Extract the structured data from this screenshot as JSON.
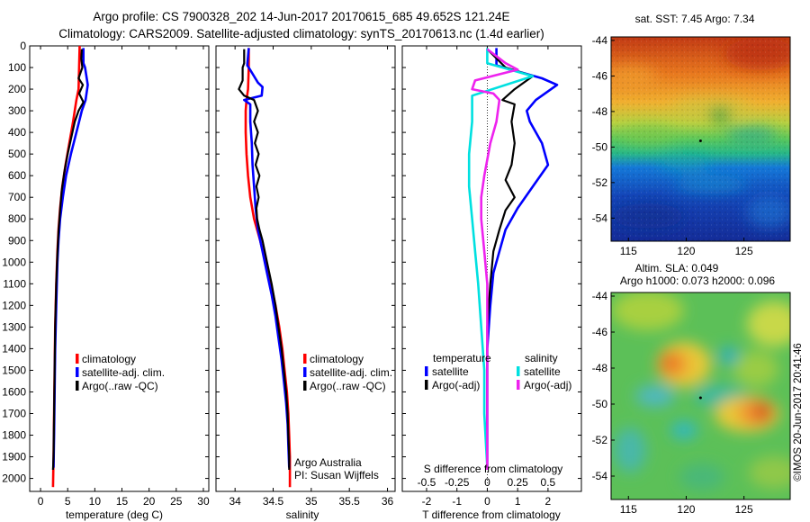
{
  "header": {
    "line1": "Argo profile: CS 7900328_202 14-Jun-2017 20170615_685 49.652S 121.24E",
    "line2": "Climatology: CARS2009. Satellite-adjusted climatology: synTS_20170613.nc (1.4d earlier)"
  },
  "colors": {
    "climatology": "#ff0000",
    "satellite": "#0000ff",
    "argo": "#000000",
    "salinity_satellite": "#00e0e0",
    "salinity_argo": "#ee22ee"
  },
  "depth_ticks": [
    0,
    100,
    200,
    300,
    400,
    500,
    600,
    700,
    800,
    900,
    1000,
    1100,
    1200,
    1300,
    1400,
    1500,
    1600,
    1700,
    1800,
    1900,
    2000
  ],
  "chart_data": [
    {
      "type": "line",
      "name": "temperature-panel",
      "xlabel": "temperature (deg C)",
      "ylabel": "",
      "xlim": [
        -2,
        31
      ],
      "ylim": [
        2060,
        0
      ],
      "x_ticks": [
        0,
        5,
        10,
        15,
        20,
        25,
        30
      ],
      "x_tick_labels": [
        "0",
        "5",
        "10",
        "15",
        "20",
        "25",
        "30"
      ],
      "legend": {
        "placement": "lower-middle",
        "entries": [
          "climatology",
          "satellite-adj. clim.",
          "Argo(..raw -QC)"
        ]
      },
      "series": [
        {
          "name": "climatology",
          "color": "#ff0000",
          "points": [
            [
              7.2,
              0
            ],
            [
              7.1,
              100
            ],
            [
              7.0,
              200
            ],
            [
              6.6,
              250
            ],
            [
              6.0,
              350
            ],
            [
              5.3,
              450
            ],
            [
              4.6,
              550
            ],
            [
              4.0,
              650
            ],
            [
              3.6,
              750
            ],
            [
              3.3,
              850
            ],
            [
              3.1,
              950
            ],
            [
              2.9,
              1100
            ],
            [
              2.7,
              1300
            ],
            [
              2.6,
              1500
            ],
            [
              2.5,
              1700
            ],
            [
              2.4,
              1900
            ],
            [
              2.3,
              2040
            ]
          ]
        },
        {
          "name": "satellite-adj. clim.",
          "color": "#0000ff",
          "points": [
            [
              7.9,
              10
            ],
            [
              7.9,
              80
            ],
            [
              8.2,
              100
            ],
            [
              8.7,
              180
            ],
            [
              8.3,
              250
            ],
            [
              7.6,
              300
            ],
            [
              6.6,
              400
            ],
            [
              5.6,
              500
            ],
            [
              4.7,
              600
            ],
            [
              4.1,
              700
            ],
            [
              3.6,
              800
            ],
            [
              3.3,
              900
            ],
            [
              3.1,
              1000
            ],
            [
              2.9,
              1200
            ],
            [
              2.7,
              1400
            ],
            [
              2.6,
              1600
            ],
            [
              2.5,
              1800
            ],
            [
              2.4,
              1950
            ]
          ]
        },
        {
          "name": "Argo(..raw -QC)",
          "color": "#000000",
          "points": [
            [
              7.6,
              15
            ],
            [
              7.5,
              60
            ],
            [
              7.7,
              100
            ],
            [
              7.0,
              150
            ],
            [
              7.8,
              180
            ],
            [
              7.1,
              220
            ],
            [
              7.9,
              260
            ],
            [
              7.0,
              300
            ],
            [
              6.3,
              350
            ],
            [
              5.7,
              420
            ],
            [
              5.0,
              500
            ],
            [
              4.4,
              580
            ],
            [
              3.9,
              670
            ],
            [
              3.6,
              760
            ],
            [
              3.3,
              860
            ],
            [
              3.1,
              960
            ],
            [
              2.9,
              1100
            ],
            [
              2.7,
              1300
            ],
            [
              2.6,
              1500
            ],
            [
              2.5,
              1700
            ],
            [
              2.4,
              1900
            ],
            [
              2.3,
              1960
            ]
          ]
        }
      ]
    },
    {
      "type": "line",
      "name": "salinity-panel",
      "xlabel": "salinity",
      "ylabel": "",
      "xlim": [
        33.75,
        36.1
      ],
      "ylim": [
        2060,
        0
      ],
      "x_ticks": [
        34,
        34.5,
        35,
        35.5,
        36
      ],
      "x_tick_labels": [
        "34",
        "34.5",
        "35",
        "35.5",
        "36"
      ],
      "legend": {
        "placement": "lower-middle",
        "entries": [
          "climatology",
          "satellite-adj. clim.",
          "Argo(..raw -QC)"
        ]
      },
      "annotation": {
        "line1": "Argo Australia",
        "line2": "PI: Susan Wijffels"
      },
      "series": [
        {
          "name": "climatology",
          "color": "#ff0000",
          "points": [
            [
              34.18,
              10
            ],
            [
              34.18,
              100
            ],
            [
              34.17,
              200
            ],
            [
              34.15,
              250
            ],
            [
              34.14,
              300
            ],
            [
              34.14,
              400
            ],
            [
              34.15,
              500
            ],
            [
              34.17,
              600
            ],
            [
              34.2,
              700
            ],
            [
              34.25,
              800
            ],
            [
              34.33,
              900
            ],
            [
              34.4,
              1000
            ],
            [
              34.47,
              1100
            ],
            [
              34.53,
              1200
            ],
            [
              34.58,
              1300
            ],
            [
              34.62,
              1400
            ],
            [
              34.65,
              1500
            ],
            [
              34.68,
              1600
            ],
            [
              34.7,
              1700
            ],
            [
              34.71,
              1800
            ],
            [
              34.72,
              1900
            ],
            [
              34.72,
              2040
            ]
          ]
        },
        {
          "name": "satellite-adj. clim.",
          "color": "#0000ff",
          "points": [
            [
              34.18,
              10
            ],
            [
              34.16,
              90
            ],
            [
              34.18,
              100
            ],
            [
              34.3,
              170
            ],
            [
              34.36,
              190
            ],
            [
              34.35,
              230
            ],
            [
              34.12,
              250
            ],
            [
              34.2,
              270
            ],
            [
              34.2,
              350
            ],
            [
              34.22,
              450
            ],
            [
              34.23,
              550
            ],
            [
              34.25,
              650
            ],
            [
              34.27,
              750
            ],
            [
              34.3,
              850
            ],
            [
              34.36,
              950
            ],
            [
              34.42,
              1050
            ],
            [
              34.48,
              1150
            ],
            [
              34.53,
              1250
            ],
            [
              34.57,
              1350
            ],
            [
              34.61,
              1450
            ],
            [
              34.64,
              1550
            ],
            [
              34.67,
              1650
            ],
            [
              34.69,
              1750
            ],
            [
              34.7,
              1850
            ],
            [
              34.71,
              1950
            ]
          ]
        },
        {
          "name": "Argo(..raw -QC)",
          "color": "#000000",
          "points": [
            [
              34.12,
              15
            ],
            [
              34.12,
              80
            ],
            [
              34.1,
              100
            ],
            [
              34.1,
              160
            ],
            [
              34.05,
              200
            ],
            [
              34.12,
              230
            ],
            [
              34.25,
              250
            ],
            [
              34.3,
              300
            ],
            [
              34.25,
              350
            ],
            [
              34.3,
              400
            ],
            [
              34.26,
              450
            ],
            [
              34.31,
              500
            ],
            [
              34.27,
              550
            ],
            [
              34.32,
              600
            ],
            [
              34.28,
              650
            ],
            [
              34.31,
              700
            ],
            [
              34.28,
              750
            ],
            [
              34.29,
              800
            ],
            [
              34.32,
              850
            ],
            [
              34.36,
              900
            ],
            [
              34.42,
              1000
            ],
            [
              34.48,
              1100
            ],
            [
              34.53,
              1200
            ],
            [
              34.57,
              1300
            ],
            [
              34.61,
              1400
            ],
            [
              34.64,
              1500
            ],
            [
              34.67,
              1600
            ],
            [
              34.69,
              1700
            ],
            [
              34.7,
              1800
            ],
            [
              34.71,
              1900
            ],
            [
              34.71,
              1960
            ]
          ]
        }
      ]
    },
    {
      "type": "line",
      "name": "difference-panel",
      "xlabel": "T difference from climatology",
      "ylabel": "",
      "xlim": [
        -2.8,
        3.1
      ],
      "ylim": [
        2060,
        0
      ],
      "x_ticks": [
        -2,
        -1,
        0,
        1,
        2
      ],
      "x_tick_labels": [
        "-2",
        "-1",
        "0",
        "1",
        "2"
      ],
      "x2_label": "S difference from climatology",
      "x2_ticks": [
        -0.5,
        -0.25,
        0,
        0.25,
        0.5
      ],
      "x2_tick_labels": [
        "-0.5",
        "-0.25",
        "0",
        "0.25",
        "0.5"
      ],
      "legend": {
        "placement": "lower-middle",
        "group_temperature": "temperature",
        "group_salinity": "salinity",
        "entries": [
          "satellite",
          "Argo(-adj)",
          "satellite",
          "Argo(-adj)"
        ]
      },
      "series": [
        {
          "name": "temperature satellite",
          "color": "#0000ff",
          "points": [
            [
              0.3,
              10
            ],
            [
              0.3,
              90
            ],
            [
              1.8,
              150
            ],
            [
              2.3,
              180
            ],
            [
              1.6,
              250
            ],
            [
              1.3,
              300
            ],
            [
              1.4,
              350
            ],
            [
              1.8,
              450
            ],
            [
              2.0,
              550
            ],
            [
              1.5,
              650
            ],
            [
              1.0,
              750
            ],
            [
              0.6,
              850
            ],
            [
              0.4,
              950
            ],
            [
              0.2,
              1050
            ],
            [
              0.1,
              1200
            ],
            [
              0.0,
              1400
            ],
            [
              0.0,
              1700
            ],
            [
              0.0,
              1950
            ]
          ]
        },
        {
          "name": "temperature Argo(-adj)",
          "color": "#000000",
          "points": [
            [
              0.0,
              15
            ],
            [
              0.6,
              100
            ],
            [
              1.5,
              140
            ],
            [
              0.9,
              200
            ],
            [
              0.5,
              250
            ],
            [
              0.9,
              270
            ],
            [
              0.8,
              350
            ],
            [
              0.9,
              450
            ],
            [
              0.8,
              550
            ],
            [
              0.6,
              620
            ],
            [
              0.9,
              700
            ],
            [
              0.6,
              760
            ],
            [
              0.4,
              850
            ],
            [
              0.2,
              950
            ],
            [
              0.1,
              1100
            ],
            [
              0.0,
              1300
            ],
            [
              0.0,
              1700
            ],
            [
              0.0,
              1960
            ]
          ]
        },
        {
          "name": "salinity satellite",
          "color": "#00e0e0",
          "points": [
            [
              0.0,
              10
            ],
            [
              0.0,
              80
            ],
            [
              0.5,
              100
            ],
            [
              1.5,
              140
            ],
            [
              -0.5,
              230
            ],
            [
              -0.5,
              350
            ],
            [
              -0.6,
              500
            ],
            [
              -0.6,
              650
            ],
            [
              -0.5,
              800
            ],
            [
              -0.4,
              950
            ],
            [
              -0.3,
              1100
            ],
            [
              -0.2,
              1300
            ],
            [
              -0.1,
              1500
            ],
            [
              -0.1,
              1700
            ],
            [
              0.0,
              1950
            ]
          ]
        },
        {
          "name": "salinity Argo(-adj)",
          "color": "#ee22ee",
          "points": [
            [
              0.0,
              15
            ],
            [
              0.6,
              80
            ],
            [
              1.0,
              110
            ],
            [
              -0.4,
              160
            ],
            [
              -0.5,
              200
            ],
            [
              0.2,
              220
            ],
            [
              0.4,
              250
            ],
            [
              0.3,
              350
            ],
            [
              0.1,
              450
            ],
            [
              -0.1,
              600
            ],
            [
              -0.2,
              700
            ],
            [
              -0.2,
              800
            ],
            [
              -0.1,
              950
            ],
            [
              0.0,
              1100
            ],
            [
              0.0,
              1400
            ],
            [
              0.0,
              1960
            ]
          ]
        }
      ]
    },
    {
      "type": "heatmap",
      "name": "sst-map",
      "title": "sat. SST: 7.45 Argo: 7.34",
      "xlim": [
        113.5,
        129
      ],
      "ylim": [
        -55.3,
        -43.8
      ],
      "x_ticks": [
        115,
        120,
        125
      ],
      "x_tick_labels": [
        "115",
        "120",
        "125"
      ],
      "y_ticks": [
        -44,
        -46,
        -48,
        -50,
        -52,
        -54
      ],
      "y_tick_labels": [
        "-44",
        "-46",
        "-48",
        "-50",
        "-52",
        "-54"
      ],
      "float_position": [
        121.24,
        -49.652
      ]
    },
    {
      "type": "heatmap",
      "name": "sla-map",
      "title": "Altim. SLA: 0.049",
      "subtitle": "Argo h1000: 0.073 h2000: 0.096",
      "xlim": [
        113.5,
        129
      ],
      "ylim": [
        -55.3,
        -43.8
      ],
      "x_ticks": [
        115,
        120,
        125
      ],
      "x_tick_labels": [
        "115",
        "120",
        "125"
      ],
      "y_ticks": [
        -44,
        -46,
        -48,
        -50,
        -52,
        -54
      ],
      "y_tick_labels": [
        "-44",
        "-46",
        "-48",
        "-50",
        "-52",
        "-54"
      ],
      "float_position": [
        121.24,
        -49.652
      ]
    }
  ],
  "footer": {
    "watermark": "©IMOS 20-Jun-2017 20:41:46"
  }
}
